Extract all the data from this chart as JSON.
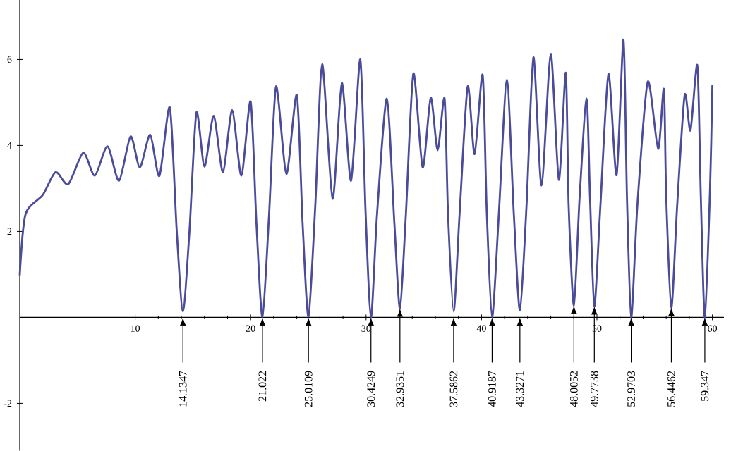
{
  "chart_data": {
    "type": "line",
    "color": "#4b4b9b",
    "line_style": "solid",
    "marker": "none",
    "grid": false,
    "xlim": [
      0,
      61
    ],
    "ylim": [
      -3.1,
      7.4
    ],
    "xticks": [
      10,
      20,
      30,
      40,
      50,
      60
    ],
    "yticks": [
      -2,
      2,
      4,
      6
    ],
    "x": [
      0,
      0.5,
      2,
      3.1,
      4.2,
      5.5,
      6.5,
      7.6,
      8.6,
      9.6,
      10.4,
      11.3,
      12.1,
      13.0,
      13.6,
      14.1347,
      14.7,
      15.3,
      16.0,
      16.8,
      17.6,
      18.4,
      19.2,
      20.0,
      20.5,
      21.022,
      21.6,
      22.2,
      23.1,
      24.0,
      24.5,
      25.0109,
      25.6,
      26.2,
      27.1,
      27.9,
      28.7,
      29.5,
      29.95,
      30.4249,
      30.95,
      31.8,
      32.45,
      32.9351,
      33.45,
      34.1,
      34.9,
      35.6,
      36.2,
      36.8,
      37.1,
      37.5862,
      38.1,
      38.8,
      39.4,
      40.1,
      40.45,
      40.9187,
      41.5,
      42.2,
      42.8,
      43.3271,
      43.9,
      44.5,
      45.2,
      46.0,
      46.7,
      47.3,
      47.55,
      48.0052,
      48.5,
      49.1,
      49.4,
      49.7738,
      50.3,
      51.0,
      51.7,
      52.3,
      52.6,
      52.9703,
      53.5,
      54.4,
      55.3,
      55.8,
      56.0,
      56.4462,
      56.95,
      57.6,
      58.1,
      58.7,
      59.0,
      59.347,
      59.8,
      60.0
    ],
    "values": [
      0.98,
      2.4,
      2.85,
      3.38,
      3.1,
      3.83,
      3.3,
      3.98,
      3.18,
      4.21,
      3.49,
      4.25,
      3.29,
      4.88,
      2.0,
      0.14,
      2.0,
      4.76,
      3.51,
      4.69,
      3.38,
      4.82,
      3.3,
      5.02,
      2.2,
      0.01,
      2.4,
      5.37,
      3.34,
      5.17,
      2.2,
      0.02,
      2.6,
      5.89,
      2.76,
      5.45,
      3.18,
      6.0,
      2.5,
      0.0,
      2.4,
      5.09,
      2.2,
      0.21,
      2.4,
      5.67,
      3.49,
      5.11,
      3.89,
      5.09,
      2.4,
      0.14,
      2.4,
      5.37,
      3.8,
      5.64,
      2.5,
      0.01,
      2.4,
      5.53,
      2.4,
      0.17,
      2.6,
      6.05,
      3.07,
      6.13,
      3.2,
      5.69,
      2.6,
      0.28,
      2.8,
      5.09,
      2.8,
      0.26,
      2.6,
      5.66,
      3.31,
      6.46,
      2.8,
      0.0,
      2.6,
      5.48,
      3.92,
      5.31,
      2.8,
      0.23,
      2.6,
      5.17,
      4.35,
      5.86,
      2.8,
      0.0,
      3.0,
      5.4
    ],
    "annotations": [
      {
        "text": "14.1347",
        "x": 14.1347,
        "y": 0
      },
      {
        "text": "21.022",
        "x": 21.022,
        "y": 0
      },
      {
        "text": "25.0109",
        "x": 25.0109,
        "y": 0
      },
      {
        "text": "30.4249",
        "x": 30.4249,
        "y": 0
      },
      {
        "text": "32.9351",
        "x": 32.9351,
        "y": 0.21
      },
      {
        "text": "37.5862",
        "x": 37.5862,
        "y": 0
      },
      {
        "text": "40.9187",
        "x": 40.9187,
        "y": 0
      },
      {
        "text": "43.3271",
        "x": 43.3271,
        "y": 0
      },
      {
        "text": "48.0052",
        "x": 48.0052,
        "y": 0.28
      },
      {
        "text": "49.7738",
        "x": 49.7738,
        "y": 0.26
      },
      {
        "text": "52.9703",
        "x": 52.9703,
        "y": 0
      },
      {
        "text": "56.4462",
        "x": 56.4462,
        "y": 0.23
      },
      {
        "text": "59.347",
        "x": 59.347,
        "y": 0
      }
    ]
  }
}
